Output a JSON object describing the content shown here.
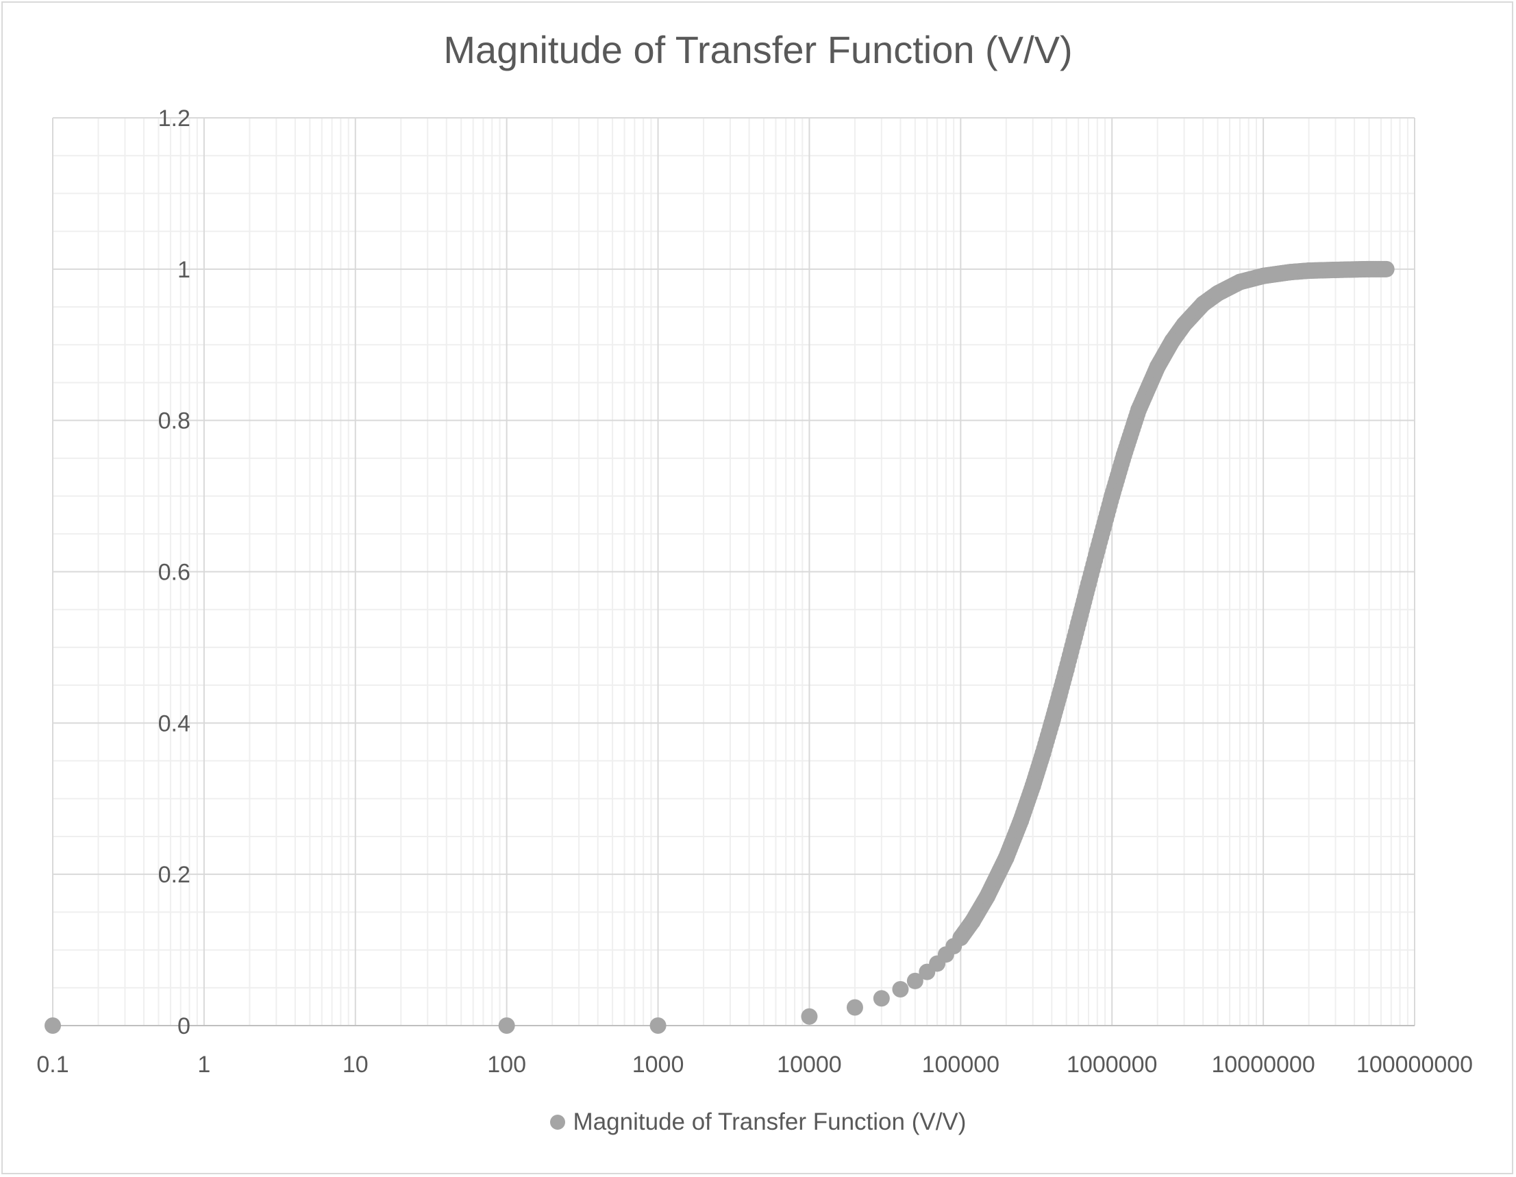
{
  "chart_data": {
    "type": "scatter",
    "title": "Magnitude of Transfer Function (V/V)",
    "xlabel": "",
    "ylabel": "",
    "x_scale": "log",
    "xlim": [
      0.1,
      100000000
    ],
    "ylim": [
      0,
      1.2
    ],
    "x_ticks": [
      "0.1",
      "1",
      "10",
      "100",
      "1000",
      "10000",
      "100000",
      "1000000",
      "10000000",
      "100000000"
    ],
    "y_ticks": [
      "0",
      "0.2",
      "0.4",
      "0.6",
      "0.8",
      "1",
      "1.2"
    ],
    "grid": true,
    "legend_position": "bottom",
    "marker_color": "#a5a5a5",
    "series": [
      {
        "name": "Magnitude of Transfer Function (V/V)",
        "points": [
          [
            0.1,
            0
          ],
          [
            100,
            0
          ],
          [
            1000,
            0
          ],
          [
            10000,
            0.012
          ],
          [
            20000,
            0.024
          ],
          [
            30000,
            0.036
          ],
          [
            40000,
            0.048
          ],
          [
            50000,
            0.059
          ],
          [
            60000,
            0.071
          ],
          [
            70000,
            0.082
          ],
          [
            80000,
            0.094
          ],
          [
            90000,
            0.105
          ],
          [
            100000,
            0.116
          ],
          [
            120000,
            0.138
          ],
          [
            150000,
            0.171
          ],
          [
            200000,
            0.222
          ],
          [
            250000,
            0.271
          ],
          [
            300000,
            0.317
          ],
          [
            350000,
            0.36
          ],
          [
            400000,
            0.4
          ],
          [
            450000,
            0.437
          ],
          [
            500000,
            0.471
          ],
          [
            600000,
            0.532
          ],
          [
            700000,
            0.584
          ],
          [
            800000,
            0.628
          ],
          [
            1000000,
            0.7
          ],
          [
            1200000,
            0.754
          ],
          [
            1500000,
            0.814
          ],
          [
            2000000,
            0.871
          ],
          [
            2500000,
            0.905
          ],
          [
            3000000,
            0.927
          ],
          [
            4000000,
            0.954
          ],
          [
            5000000,
            0.968
          ],
          [
            7000000,
            0.983
          ],
          [
            10000000,
            0.991
          ],
          [
            15000000,
            0.996
          ],
          [
            20000000,
            0.998
          ],
          [
            30000000,
            0.999
          ],
          [
            50000000,
            1.0
          ],
          [
            65000000,
            1.0
          ]
        ]
      }
    ]
  }
}
